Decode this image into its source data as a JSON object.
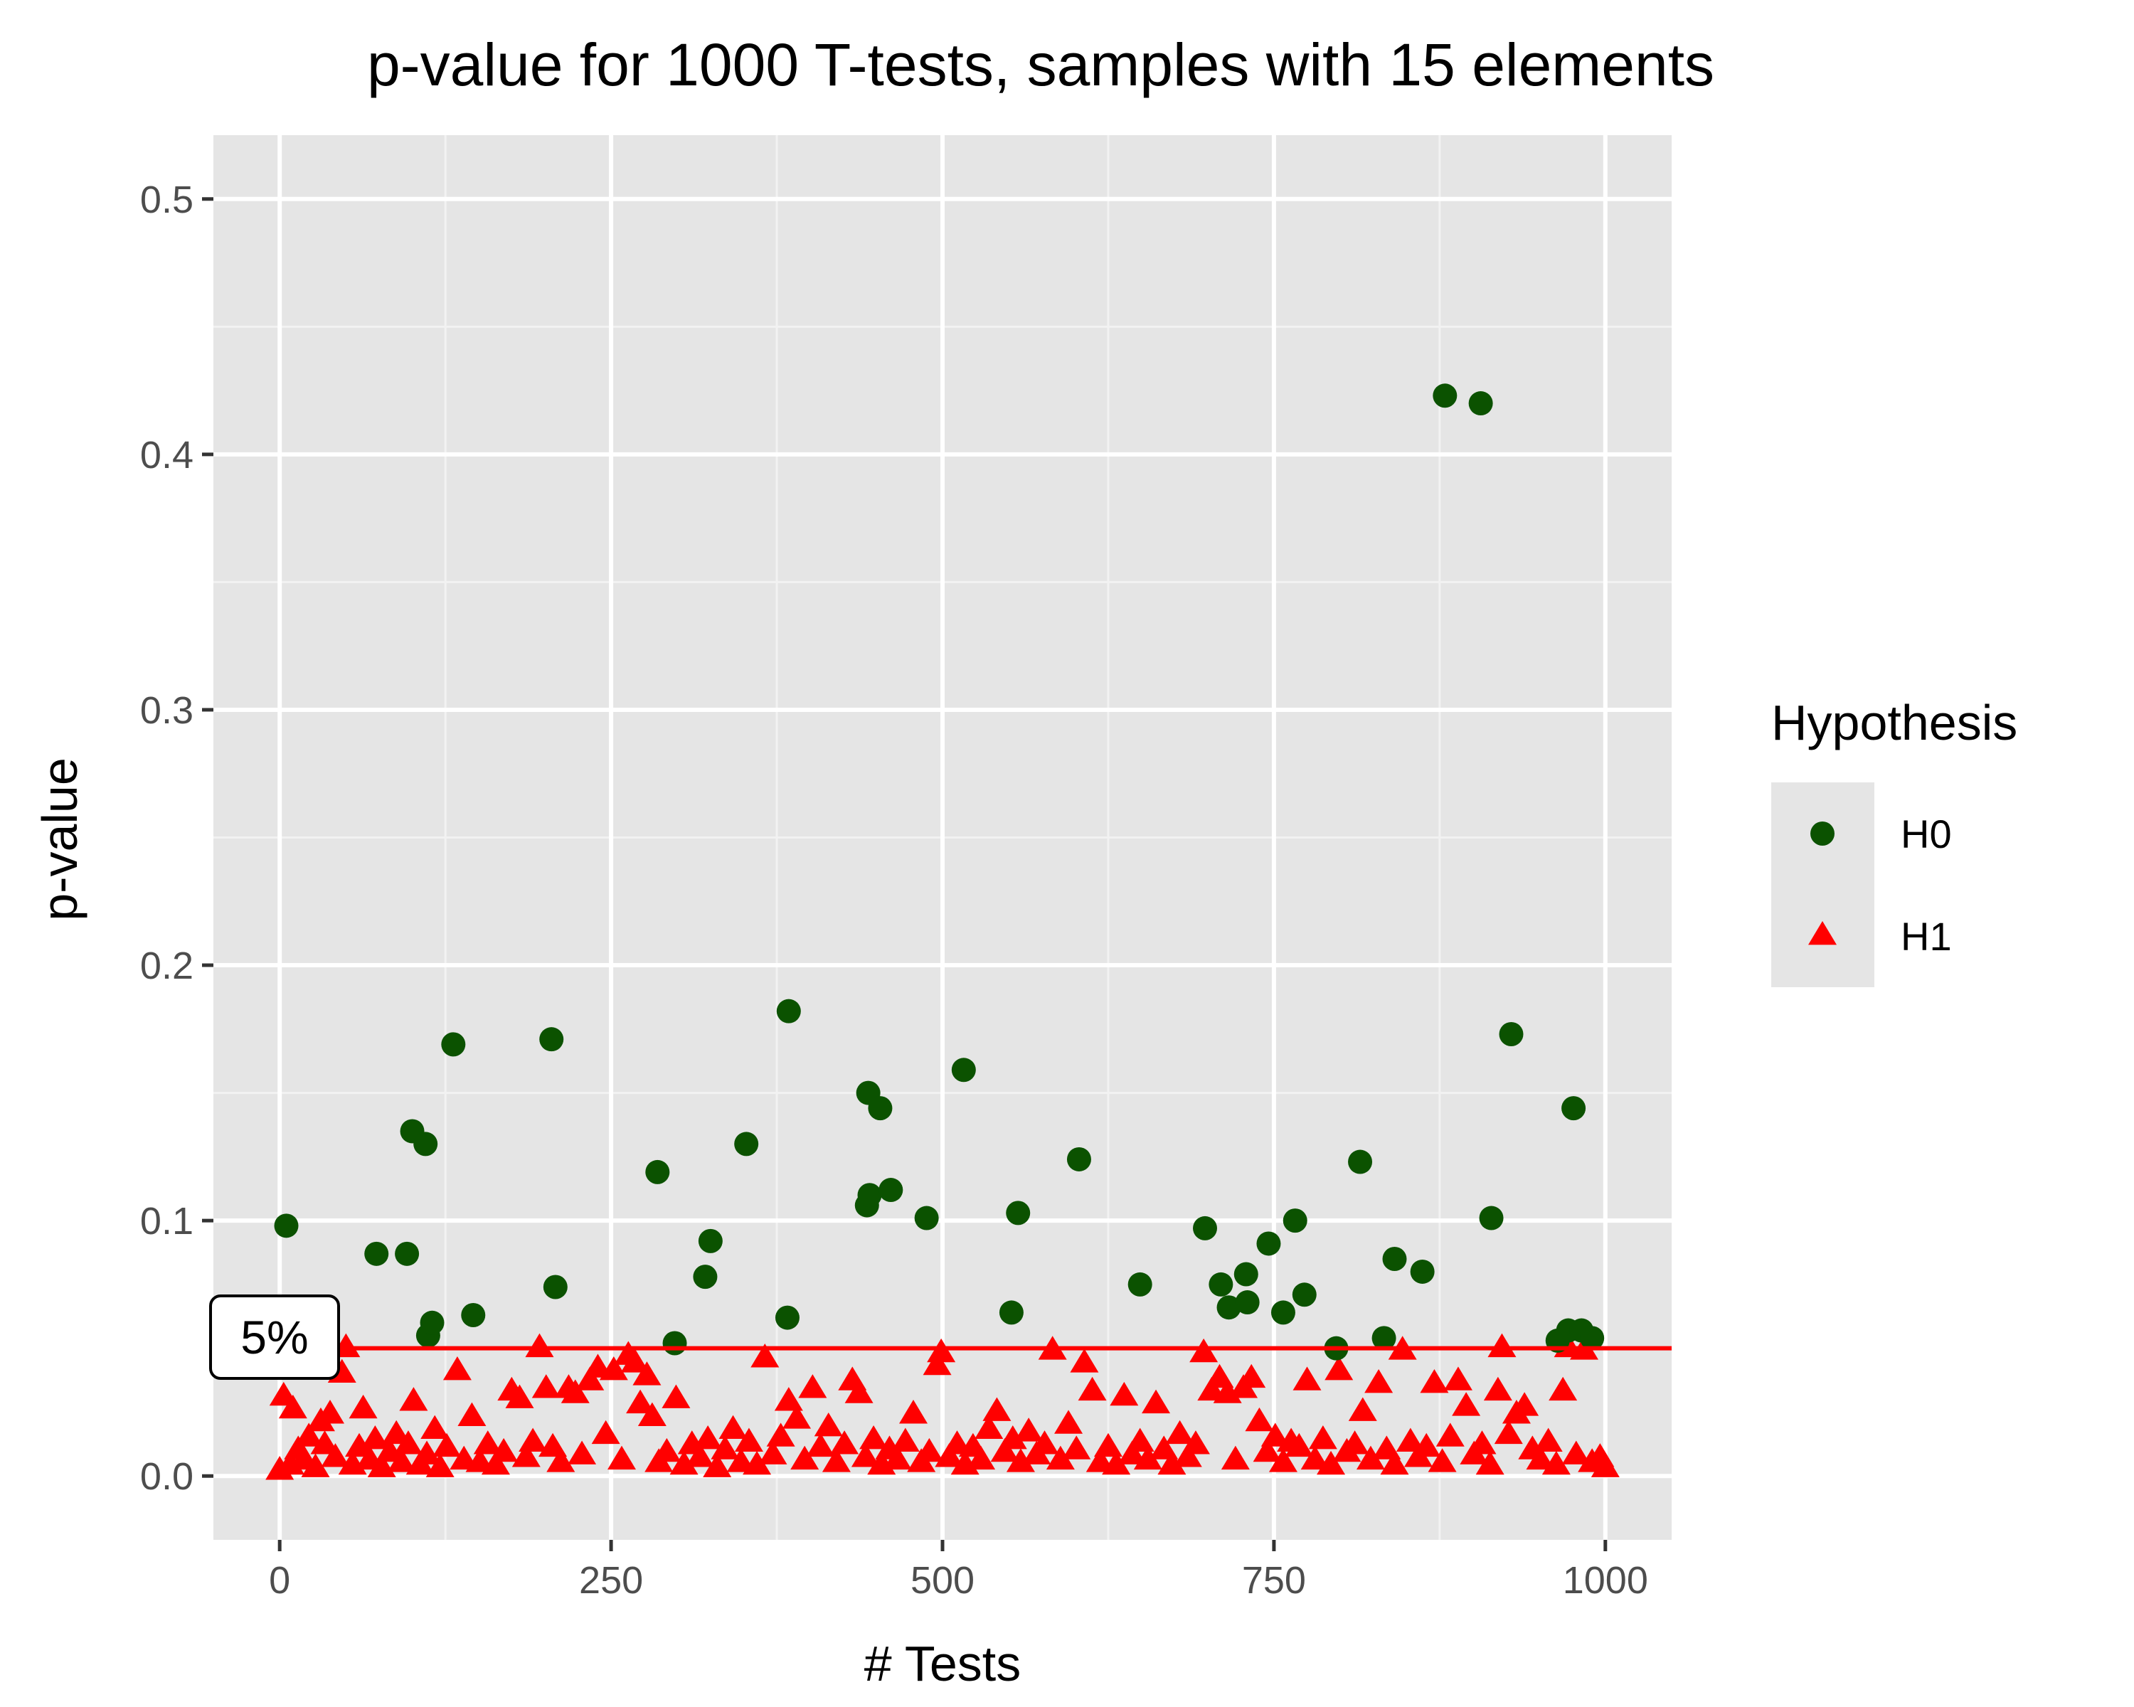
{
  "chart_data": {
    "type": "scatter",
    "title": "p-value for 1000 T-tests, samples with 15 elements",
    "xlabel": "# Tests",
    "ylabel": "p-value",
    "xlim": [
      -50,
      1050
    ],
    "ylim": [
      -0.025,
      0.525
    ],
    "x_ticks": [
      0,
      250,
      500,
      750,
      1000
    ],
    "y_ticks": [
      0.0,
      0.1,
      0.2,
      0.3,
      0.4,
      0.5
    ],
    "x_tick_labels": [
      "0",
      "250",
      "500",
      "750",
      "1000"
    ],
    "y_tick_labels": [
      "0.0",
      "0.1",
      "0.2",
      "0.3",
      "0.4",
      "0.5"
    ],
    "grid": true,
    "legend": {
      "title": "Hypothesis",
      "placement": "right"
    },
    "reference_line": {
      "y": 0.05,
      "label": "5%",
      "color": "#ff0000"
    },
    "background_color": "#e5e5e5",
    "series": [
      {
        "name": "H0",
        "marker": "circle",
        "color": "#0b5200",
        "points": [
          [
            5,
            0.098
          ],
          [
            73,
            0.087
          ],
          [
            96,
            0.087
          ],
          [
            100,
            0.135
          ],
          [
            110,
            0.13
          ],
          [
            112,
            0.055
          ],
          [
            115,
            0.06
          ],
          [
            131,
            0.169
          ],
          [
            146,
            0.063
          ],
          [
            205,
            0.171
          ],
          [
            208,
            0.074
          ],
          [
            285,
            0.119
          ],
          [
            298,
            0.052
          ],
          [
            321,
            0.078
          ],
          [
            325,
            0.092
          ],
          [
            352,
            0.13
          ],
          [
            383,
            0.062
          ],
          [
            384,
            0.182
          ],
          [
            443,
            0.106
          ],
          [
            444,
            0.15
          ],
          [
            445,
            0.11
          ],
          [
            453,
            0.144
          ],
          [
            461,
            0.112
          ],
          [
            488,
            0.101
          ],
          [
            516,
            0.159
          ],
          [
            552,
            0.064
          ],
          [
            557,
            0.103
          ],
          [
            603,
            0.124
          ],
          [
            649,
            0.075
          ],
          [
            698,
            0.097
          ],
          [
            710,
            0.075
          ],
          [
            716,
            0.066
          ],
          [
            729,
            0.079
          ],
          [
            730,
            0.068
          ],
          [
            746,
            0.091
          ],
          [
            757,
            0.064
          ],
          [
            766,
            0.1
          ],
          [
            773,
            0.071
          ],
          [
            797,
            0.05
          ],
          [
            815,
            0.123
          ],
          [
            833,
            0.054
          ],
          [
            841,
            0.085
          ],
          [
            862,
            0.08
          ],
          [
            879,
            0.423
          ],
          [
            906,
            0.42
          ],
          [
            914,
            0.101
          ],
          [
            929,
            0.173
          ],
          [
            964,
            0.053
          ],
          [
            972,
            0.057
          ],
          [
            976,
            0.144
          ],
          [
            982,
            0.057
          ],
          [
            990,
            0.054
          ]
        ]
      },
      {
        "name": "H1",
        "marker": "triangle",
        "color": "#ff0000",
        "points": [
          [
            0,
            0.002
          ],
          [
            3,
            0.031
          ],
          [
            8,
            0.004
          ],
          [
            10,
            0.026
          ],
          [
            14,
            0.01
          ],
          [
            18,
            0.006
          ],
          [
            22,
            0.015
          ],
          [
            27,
            0.003
          ],
          [
            31,
            0.021
          ],
          [
            34,
            0.012
          ],
          [
            38,
            0.024
          ],
          [
            42,
            0.007
          ],
          [
            47,
            0.04
          ],
          [
            50,
            0.05
          ],
          [
            55,
            0.004
          ],
          [
            60,
            0.011
          ],
          [
            63,
            0.026
          ],
          [
            68,
            0.006
          ],
          [
            72,
            0.014
          ],
          [
            77,
            0.003
          ],
          [
            83,
            0.009
          ],
          [
            88,
            0.016
          ],
          [
            92,
            0.005
          ],
          [
            97,
            0.012
          ],
          [
            101,
            0.029
          ],
          [
            106,
            0.004
          ],
          [
            111,
            0.008
          ],
          [
            117,
            0.018
          ],
          [
            121,
            0.003
          ],
          [
            126,
            0.011
          ],
          [
            134,
            0.041
          ],
          [
            139,
            0.006
          ],
          [
            145,
            0.023
          ],
          [
            151,
            0.005
          ],
          [
            157,
            0.012
          ],
          [
            163,
            0.004
          ],
          [
            169,
            0.009
          ],
          [
            175,
            0.033
          ],
          [
            181,
            0.03
          ],
          [
            186,
            0.007
          ],
          [
            191,
            0.013
          ],
          [
            196,
            0.05
          ],
          [
            201,
            0.034
          ],
          [
            206,
            0.011
          ],
          [
            212,
            0.005
          ],
          [
            218,
            0.034
          ],
          [
            223,
            0.032
          ],
          [
            228,
            0.008
          ],
          [
            234,
            0.037
          ],
          [
            240,
            0.042
          ],
          [
            246,
            0.016
          ],
          [
            252,
            0.041
          ],
          [
            258,
            0.006
          ],
          [
            263,
            0.047
          ],
          [
            268,
            0.044
          ],
          [
            272,
            0.028
          ],
          [
            277,
            0.039
          ],
          [
            281,
            0.023
          ],
          [
            286,
            0.005
          ],
          [
            292,
            0.009
          ],
          [
            299,
            0.03
          ],
          [
            305,
            0.004
          ],
          [
            311,
            0.012
          ],
          [
            317,
            0.007
          ],
          [
            323,
            0.014
          ],
          [
            330,
            0.003
          ],
          [
            336,
            0.01
          ],
          [
            342,
            0.018
          ],
          [
            348,
            0.005
          ],
          [
            354,
            0.013
          ],
          [
            360,
            0.004
          ],
          [
            366,
            0.046
          ],
          [
            372,
            0.008
          ],
          [
            378,
            0.015
          ],
          [
            384,
            0.029
          ],
          [
            390,
            0.022
          ],
          [
            396,
            0.006
          ],
          [
            402,
            0.034
          ],
          [
            408,
            0.011
          ],
          [
            414,
            0.019
          ],
          [
            420,
            0.005
          ],
          [
            426,
            0.012
          ],
          [
            432,
            0.037
          ],
          [
            437,
            0.032
          ],
          [
            442,
            0.007
          ],
          [
            448,
            0.014
          ],
          [
            454,
            0.004
          ],
          [
            460,
            0.01
          ],
          [
            466,
            0.006
          ],
          [
            472,
            0.013
          ],
          [
            478,
            0.024
          ],
          [
            484,
            0.005
          ],
          [
            490,
            0.009
          ],
          [
            496,
            0.043
          ],
          [
            499,
            0.048
          ],
          [
            505,
            0.007
          ],
          [
            511,
            0.012
          ],
          [
            517,
            0.004
          ],
          [
            523,
            0.011
          ],
          [
            529,
            0.006
          ],
          [
            535,
            0.018
          ],
          [
            541,
            0.025
          ],
          [
            547,
            0.009
          ],
          [
            553,
            0.014
          ],
          [
            559,
            0.005
          ],
          [
            565,
            0.017
          ],
          [
            571,
            0.008
          ],
          [
            577,
            0.012
          ],
          [
            583,
            0.049
          ],
          [
            589,
            0.006
          ],
          [
            595,
            0.02
          ],
          [
            601,
            0.01
          ],
          [
            607,
            0.044
          ],
          [
            613,
            0.033
          ],
          [
            619,
            0.005
          ],
          [
            625,
            0.011
          ],
          [
            631,
            0.004
          ],
          [
            637,
            0.031
          ],
          [
            643,
            0.008
          ],
          [
            649,
            0.013
          ],
          [
            655,
            0.006
          ],
          [
            661,
            0.028
          ],
          [
            667,
            0.01
          ],
          [
            673,
            0.004
          ],
          [
            679,
            0.016
          ],
          [
            685,
            0.007
          ],
          [
            691,
            0.012
          ],
          [
            697,
            0.048
          ],
          [
            703,
            0.033
          ],
          [
            709,
            0.038
          ],
          [
            715,
            0.032
          ],
          [
            721,
            0.006
          ],
          [
            727,
            0.034
          ],
          [
            733,
            0.038
          ],
          [
            739,
            0.021
          ],
          [
            745,
            0.009
          ],
          [
            751,
            0.015
          ],
          [
            757,
            0.005
          ],
          [
            763,
            0.013
          ],
          [
            769,
            0.011
          ],
          [
            775,
            0.037
          ],
          [
            781,
            0.006
          ],
          [
            787,
            0.014
          ],
          [
            793,
            0.004
          ],
          [
            799,
            0.041
          ],
          [
            805,
            0.009
          ],
          [
            811,
            0.012
          ],
          [
            817,
            0.025
          ],
          [
            823,
            0.006
          ],
          [
            829,
            0.036
          ],
          [
            835,
            0.01
          ],
          [
            841,
            0.004
          ],
          [
            847,
            0.049
          ],
          [
            853,
            0.013
          ],
          [
            859,
            0.007
          ],
          [
            865,
            0.011
          ],
          [
            871,
            0.036
          ],
          [
            877,
            0.005
          ],
          [
            883,
            0.015
          ],
          [
            889,
            0.037
          ],
          [
            895,
            0.027
          ],
          [
            901,
            0.008
          ],
          [
            907,
            0.012
          ],
          [
            913,
            0.004
          ],
          [
            919,
            0.033
          ],
          [
            922,
            0.05
          ],
          [
            927,
            0.016
          ],
          [
            933,
            0.024
          ],
          [
            939,
            0.027
          ],
          [
            945,
            0.01
          ],
          [
            951,
            0.006
          ],
          [
            957,
            0.013
          ],
          [
            963,
            0.004
          ],
          [
            968,
            0.033
          ],
          [
            972,
            0.05
          ],
          [
            978,
            0.008
          ],
          [
            984,
            0.049
          ],
          [
            990,
            0.005
          ],
          [
            996,
            0.007
          ],
          [
            1000,
            0.003
          ]
        ]
      }
    ]
  }
}
